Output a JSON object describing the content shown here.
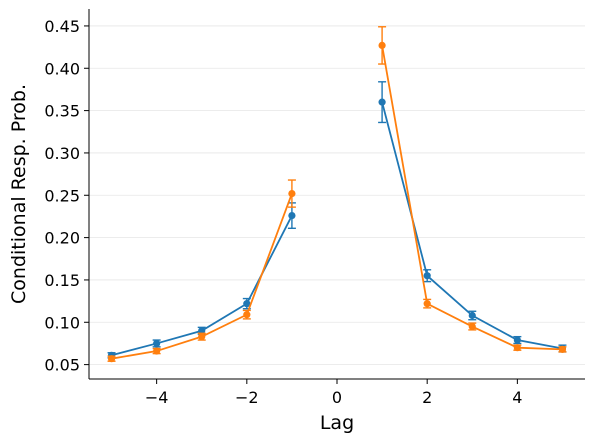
{
  "chart_data": {
    "type": "line",
    "title": "",
    "xlabel": "Lag",
    "ylabel": "Conditional Resp. Prob.",
    "xlim": [
      -5.5,
      5.5
    ],
    "ylim": [
      0.033,
      0.47
    ],
    "xticks": [
      -4,
      -2,
      0,
      2,
      4
    ],
    "xtick_labels": [
      "−4",
      "−2",
      "0",
      "2",
      "4"
    ],
    "yticks": [
      0.05,
      0.1,
      0.15,
      0.2,
      0.25,
      0.3,
      0.35,
      0.4,
      0.45
    ],
    "ytick_labels": [
      "0.05",
      "0.10",
      "0.15",
      "0.20",
      "0.25",
      "0.30",
      "0.35",
      "0.40",
      "0.45"
    ],
    "grid": "horizontal",
    "legend": "none",
    "series": [
      {
        "color": "#1f77b4",
        "segments": [
          {
            "x": [
              -5,
              -4,
              -3,
              -2,
              -1
            ],
            "y": [
              0.061,
              0.075,
              0.09,
              0.122,
              0.226
            ],
            "err": [
              0.003,
              0.004,
              0.004,
              0.006,
              0.015
            ]
          },
          {
            "x": [
              1,
              2,
              3,
              4,
              5
            ],
            "y": [
              0.36,
              0.155,
              0.108,
              0.079,
              0.069
            ],
            "err": [
              0.024,
              0.007,
              0.005,
              0.004,
              0.004
            ]
          }
        ]
      },
      {
        "color": "#ff7f0e",
        "segments": [
          {
            "x": [
              -5,
              -4,
              -3,
              -2,
              -1
            ],
            "y": [
              0.057,
              0.066,
              0.083,
              0.109,
              0.252
            ],
            "err": [
              0.003,
              0.003,
              0.004,
              0.005,
              0.016
            ]
          },
          {
            "x": [
              1,
              2,
              3,
              4,
              5
            ],
            "y": [
              0.427,
              0.122,
              0.095,
              0.07,
              0.068
            ],
            "err": [
              0.022,
              0.005,
              0.004,
              0.003,
              0.003
            ]
          }
        ]
      }
    ]
  }
}
